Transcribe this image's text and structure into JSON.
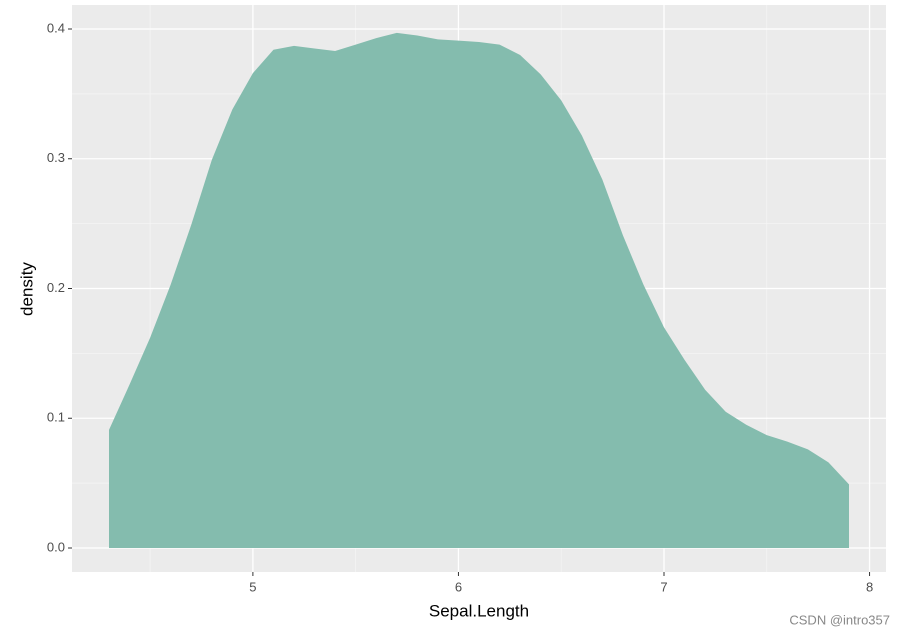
{
  "chart_data": {
    "type": "area",
    "x_label": "Sepal.Length",
    "y_label": "density",
    "x": [
      4.3,
      4.4,
      4.5,
      4.6,
      4.7,
      4.8,
      4.9,
      5.0,
      5.1,
      5.2,
      5.3,
      5.4,
      5.5,
      5.6,
      5.7,
      5.8,
      5.9,
      6.0,
      6.1,
      6.2,
      6.3,
      6.4,
      6.5,
      6.6,
      6.7,
      6.8,
      6.9,
      7.0,
      7.1,
      7.2,
      7.3,
      7.4,
      7.5,
      7.6,
      7.7,
      7.8,
      7.9
    ],
    "values": [
      0.091,
      0.126,
      0.162,
      0.203,
      0.249,
      0.299,
      0.338,
      0.366,
      0.384,
      0.387,
      0.385,
      0.383,
      0.388,
      0.393,
      0.397,
      0.395,
      0.392,
      0.391,
      0.39,
      0.388,
      0.38,
      0.365,
      0.345,
      0.318,
      0.284,
      0.241,
      0.203,
      0.17,
      0.145,
      0.122,
      0.105,
      0.095,
      0.087,
      0.082,
      0.076,
      0.066,
      0.049
    ],
    "color": "#84bcae",
    "xlim": [
      4.12,
      8.08
    ],
    "ylim": [
      -0.0185,
      0.4185
    ],
    "xticks": [
      5,
      6,
      7,
      8
    ],
    "yticks": [
      {
        "value": 0,
        "label": "0.0"
      },
      0.1,
      0.2,
      0.3,
      0.4
    ],
    "xminor": [
      4.5,
      5.5,
      6.5,
      7.5
    ],
    "yminor": [
      0.05,
      0.15,
      0.25,
      0.35
    ],
    "grid": true,
    "watermark": "CSDN @intro357"
  }
}
